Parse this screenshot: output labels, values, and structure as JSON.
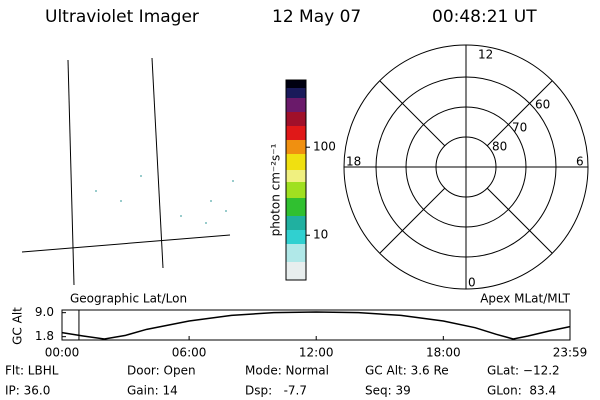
{
  "header": {
    "title": "Ultraviolet Imager",
    "date": "12 May 07",
    "time": "00:48:21 UT"
  },
  "colorbar": {
    "label": "photon cm⁻²s⁻¹",
    "scale": "log",
    "ylim": [
      3.1,
      580
    ],
    "yticks": [
      10,
      100
    ]
  },
  "polar": {
    "mlt_labels": [
      "12",
      "6",
      "0",
      "18"
    ],
    "lat_labels": [
      "60",
      "70",
      "80"
    ]
  },
  "altitude": {
    "ylabel": "GC Alt",
    "left_label": "Geographic Lat/Lon",
    "right_label": "Apex MLat/MLT",
    "xlim": [
      0,
      23.98
    ],
    "ylim": [
      0.8,
      9.8
    ],
    "xticks": [
      {
        "value": 0,
        "label": "00:00"
      },
      {
        "value": 6,
        "label": "06:00"
      },
      {
        "value": 12,
        "label": "12:00"
      },
      {
        "value": 18,
        "label": "18:00"
      },
      {
        "value": 23.98,
        "label": "23:59"
      }
    ],
    "yticks": [
      {
        "value": 9,
        "label": "9.0"
      },
      {
        "value": 1.8,
        "label": "1.8"
      }
    ],
    "curve": {
      "color": "#000000",
      "x": [
        0,
        1,
        2,
        3,
        4,
        6,
        8,
        10,
        12,
        14,
        16,
        18,
        19.5,
        20.5,
        21.3,
        22,
        23,
        23.98
      ],
      "y": [
        3.0,
        2.0,
        1.1,
        2.2,
        4.0,
        6.5,
        8.2,
        9.0,
        9.2,
        9.0,
        8.2,
        6.5,
        4.5,
        2.5,
        1.1,
        2.0,
        3.5,
        4.8
      ]
    },
    "marker": {
      "value": 0.8,
      "color": "#cc2222"
    }
  },
  "status": {
    "rows": [
      [
        "Flt: LBHL",
        "Door: Open",
        "Mode: Normal",
        "GC Alt: 3.6 Re",
        "GLat: −12.2"
      ],
      [
        "IP: 36.0",
        "Gain: 14",
        "Dsp:   -7.7",
        "Seq: 39",
        "GLon:  83.4"
      ]
    ]
  }
}
